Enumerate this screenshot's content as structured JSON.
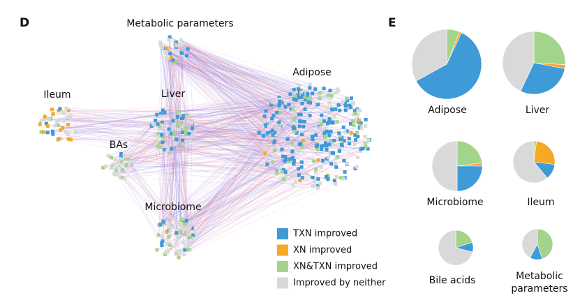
{
  "panels": [
    "D",
    "E"
  ],
  "network": {
    "labels": [
      "Metabolic parameters",
      "Adipose",
      "Ileum",
      "Liver",
      "BAs",
      "Microbiome"
    ]
  },
  "legend": {
    "names": [
      "TXN improved",
      "XN improved",
      "XN&TXN improved",
      "Improved by neither"
    ],
    "colors": [
      "#3f9ad8",
      "#f7a825",
      "#a3d48b",
      "#d9d9d9"
    ]
  },
  "chart_data": [
    {
      "type": "pie",
      "title": "Adipose",
      "values": [
        60,
        1,
        6,
        33
      ]
    },
    {
      "type": "pie",
      "title": "Liver",
      "values": [
        29,
        2,
        26,
        43
      ]
    },
    {
      "type": "pie",
      "title": "Microbiome",
      "values": [
        25,
        2,
        23,
        50
      ]
    },
    {
      "type": "pie",
      "title": "Ileum",
      "values": [
        12,
        25,
        2,
        61
      ]
    },
    {
      "type": "pie",
      "title": "Bile acids",
      "values": [
        9,
        0,
        20,
        71
      ]
    },
    {
      "type": "pie",
      "title": "Metabolic parameters",
      "values": [
        13,
        0,
        45,
        42
      ]
    }
  ]
}
